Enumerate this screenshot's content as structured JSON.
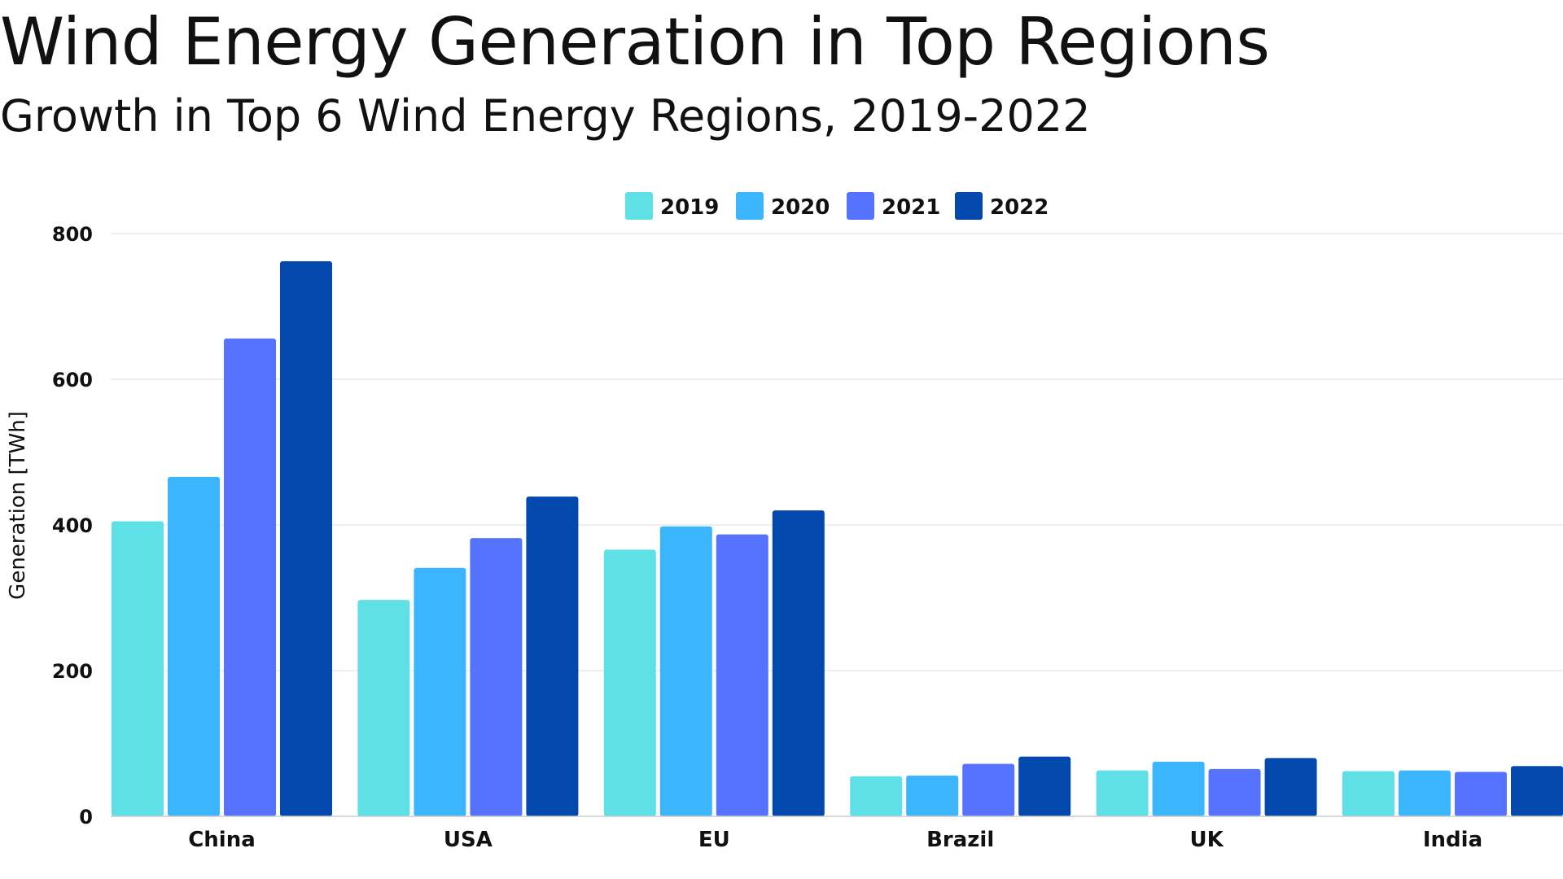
{
  "chart_data": {
    "type": "bar",
    "title": "Wind Energy Generation in Top Regions",
    "subtitle": "Growth in Top 6 Wind Energy Regions, 2019-2022",
    "xlabel": "",
    "ylabel": "Generation [TWh]",
    "categories": [
      "China",
      "USA",
      "EU",
      "Brazil",
      "UK",
      "India"
    ],
    "ylim": [
      0,
      800
    ],
    "yticks": [
      0,
      200,
      400,
      600,
      800
    ],
    "grid": true,
    "legend_position": "top-center",
    "series": [
      {
        "name": "2019",
        "color": "#5fe0e6",
        "values": [
          405,
          297,
          366,
          55,
          63,
          62
        ]
      },
      {
        "name": "2020",
        "color": "#3cb5ff",
        "values": [
          466,
          341,
          398,
          56,
          75,
          63
        ]
      },
      {
        "name": "2021",
        "color": "#5673ff",
        "values": [
          656,
          382,
          387,
          72,
          65,
          61
        ]
      },
      {
        "name": "2022",
        "color": "#0349ad",
        "values": [
          762,
          439,
          420,
          82,
          80,
          69
        ]
      }
    ]
  }
}
